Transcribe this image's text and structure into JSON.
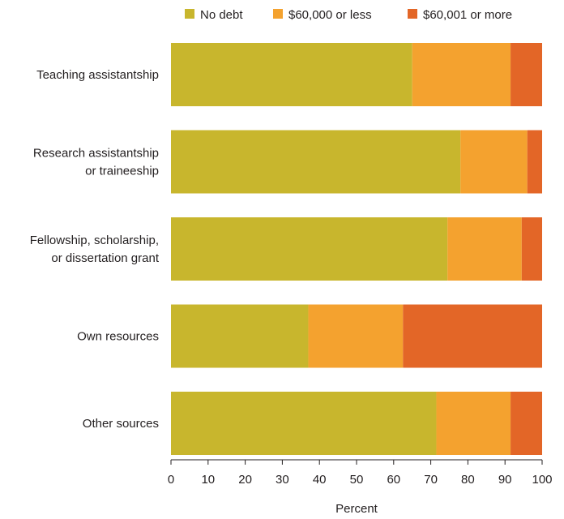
{
  "chart_data": {
    "type": "bar",
    "orientation": "horizontal",
    "stacked": true,
    "title": "",
    "xlabel": "Percent",
    "ylabel": "",
    "xlim": [
      0,
      100
    ],
    "xticks": [
      "0",
      "10",
      "20",
      "30",
      "40",
      "50",
      "60",
      "70",
      "80",
      "90",
      "100"
    ],
    "grid": false,
    "legend_position": "top",
    "categories": [
      "Teaching assistantship",
      "Research assistantship or traineeship",
      "Fellowship, scholarship, or dissertation grant",
      "Own resources",
      "Other sources"
    ],
    "category_lines": [
      [
        "Teaching assistantship"
      ],
      [
        "Research assistantship",
        "or traineeship"
      ],
      [
        "Fellowship, scholarship,",
        "or dissertation grant"
      ],
      [
        "Own resources"
      ],
      [
        "Other sources"
      ]
    ],
    "series": [
      {
        "name": "No debt",
        "color": "#c8b62d",
        "values": [
          65,
          78,
          74.5,
          37,
          71.5
        ]
      },
      {
        "name": "$60,000 or less",
        "color": "#f4a22f",
        "values": [
          26.5,
          18,
          20,
          25.5,
          20
        ]
      },
      {
        "name": "$60,001 or more",
        "color": "#e36627",
        "values": [
          8.5,
          4,
          5.5,
          37.5,
          8.5
        ]
      }
    ]
  }
}
